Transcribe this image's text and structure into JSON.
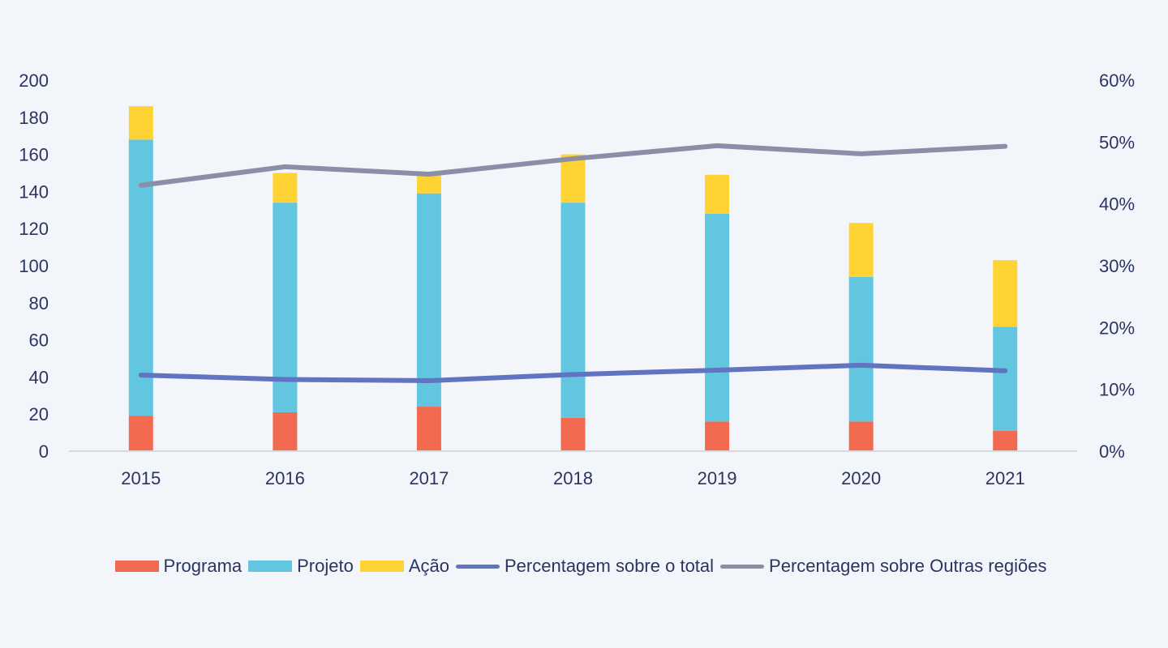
{
  "chart_data": {
    "type": "bar",
    "stacked": true,
    "title": "",
    "xlabel": "",
    "ylabel": "",
    "categories": [
      "2015",
      "2016",
      "2017",
      "2018",
      "2019",
      "2020",
      "2021"
    ],
    "ylim": [
      0,
      200
    ],
    "yticks": [
      0,
      20,
      40,
      60,
      80,
      100,
      120,
      140,
      160,
      180,
      200
    ],
    "y2lim": [
      0,
      0.6
    ],
    "y2ticks": [
      "0%",
      "10%",
      "20%",
      "30%",
      "40%",
      "50%",
      "60%"
    ],
    "grid": false,
    "legend_position": "bottom",
    "series": [
      {
        "name": "Programa",
        "type": "bar",
        "axis": "left",
        "color": "#f26b50",
        "values": [
          19,
          21,
          24,
          18,
          16,
          16,
          11
        ]
      },
      {
        "name": "Projeto",
        "type": "bar",
        "axis": "left",
        "color": "#62c6e0",
        "values": [
          149,
          113,
          115,
          116,
          112,
          78,
          56
        ]
      },
      {
        "name": "Ação",
        "type": "bar",
        "axis": "left",
        "color": "#ffd333",
        "values": [
          18,
          16,
          11,
          26,
          21,
          29,
          36
        ]
      },
      {
        "name": "Percentagem sobre o total",
        "type": "line",
        "axis": "right",
        "color": "#6174c2",
        "values": [
          0.123,
          0.116,
          0.114,
          0.124,
          0.131,
          0.139,
          0.13
        ]
      },
      {
        "name": "Percentagem sobre Outras regiões",
        "type": "line",
        "axis": "right",
        "color": "#8a8ea6",
        "values": [
          0.43,
          0.46,
          0.448,
          0.473,
          0.494,
          0.481,
          0.493
        ]
      }
    ]
  }
}
